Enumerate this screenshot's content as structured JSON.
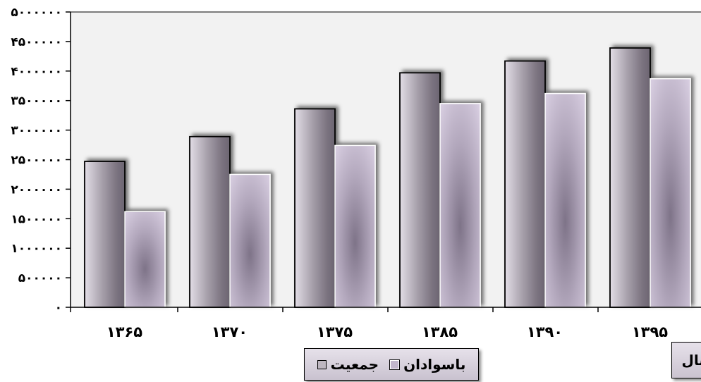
{
  "chart_data": {
    "type": "bar",
    "categories": [
      "۱۳۶۵",
      "۱۳۷۰",
      "۱۳۷۵",
      "۱۳۸۵",
      "۱۳۹۰",
      "۱۳۹۵"
    ],
    "series": [
      {
        "name": "جمعیت",
        "values": [
          2470000,
          2890000,
          3360000,
          3970000,
          4170000,
          4390000
        ],
        "color": "#a8a2aa"
      },
      {
        "name": "باسوادان",
        "values": [
          1620000,
          2250000,
          2740000,
          3450000,
          3620000,
          3870000
        ],
        "color": "#c2b6cc"
      }
    ],
    "y_tick_labels": [
      "۰",
      "۵۰۰۰۰۰",
      "۱۰۰۰۰۰۰",
      "۱۵۰۰۰۰۰",
      "۲۰۰۰۰۰۰",
      "۲۵۰۰۰۰۰",
      "۳۰۰۰۰۰۰",
      "۳۵۰۰۰۰۰",
      "۴۰۰۰۰۰۰",
      "۴۵۰۰۰۰۰",
      "۵۰۰۰۰۰۰"
    ],
    "ylim": [
      0,
      5000000
    ],
    "xlabel": "سال",
    "ylabel": "",
    "grid": false,
    "legend_position": "bottom"
  },
  "legend": {
    "literate_label": "باسوادان",
    "population_label": "جمعیت"
  },
  "axis": {
    "x_title": "سال"
  }
}
